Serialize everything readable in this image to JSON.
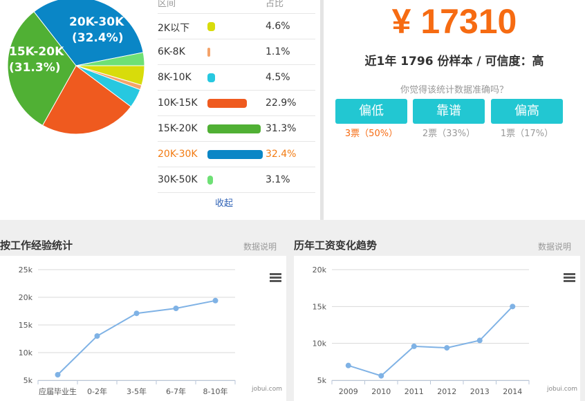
{
  "pie": {
    "labels": [
      {
        "range": "20K-30K",
        "pct": "(32.4%)"
      },
      {
        "range": "15K-20K",
        "pct": "(31.3%)"
      }
    ],
    "slices": [
      {
        "value": 4.6,
        "color": "#d8dc0b"
      },
      {
        "value": 1.1,
        "color": "#f4a36a"
      },
      {
        "value": 4.5,
        "color": "#27c8e0"
      },
      {
        "value": 22.9,
        "color": "#ef5a1f"
      },
      {
        "value": 31.3,
        "color": "#50b034"
      },
      {
        "value": 32.4,
        "color": "#0a86c6"
      },
      {
        "value": 3.1,
        "color": "#6ee075"
      }
    ]
  },
  "table": {
    "col_range": "区间",
    "col_pct": "占比",
    "rows": [
      {
        "range": "2K以下",
        "pct": "4.6%",
        "value": 4.6,
        "color": "#d8dc0b"
      },
      {
        "range": "6K-8K",
        "pct": "1.1%",
        "value": 1.1,
        "color": "#f4a36a"
      },
      {
        "range": "8K-10K",
        "pct": "4.5%",
        "value": 4.5,
        "color": "#27c8e0"
      },
      {
        "range": "10K-15K",
        "pct": "22.9%",
        "value": 22.9,
        "color": "#ef5a1f"
      },
      {
        "range": "15K-20K",
        "pct": "31.3%",
        "value": 31.3,
        "color": "#50b034"
      },
      {
        "range": "20K-30K",
        "pct": "32.4%",
        "value": 32.4,
        "color": "#0a86c6"
      },
      {
        "range": "30K-50K",
        "pct": "3.1%",
        "value": 3.1,
        "color": "#6ee075"
      }
    ],
    "collapse_label": "收起"
  },
  "summary": {
    "salary": "¥ 17310",
    "sample": "近1年 1796 份样本 / 可信度：高",
    "question": "你觉得该统计数据准确吗？",
    "votes": [
      {
        "label": "偏低",
        "count": "3票（50%）",
        "active": true
      },
      {
        "label": "靠谱",
        "count": "2票（33%）",
        "active": false
      },
      {
        "label": "偏高",
        "count": "1票（17%）",
        "active": false
      }
    ]
  },
  "experience": {
    "title": "按工作经验统计",
    "link": "数据说明",
    "credit": "jobui.com"
  },
  "trend": {
    "title": "历年工资变化趋势",
    "link": "数据说明",
    "credit": "jobui.com"
  },
  "chart_data": [
    {
      "type": "line",
      "categories": [
        "应届毕业生",
        "0-2年",
        "3-5年",
        "6-7年",
        "8-10年"
      ],
      "values": [
        6000,
        13000,
        17100,
        18000,
        19400
      ],
      "ylim": [
        5000,
        25000
      ],
      "yticks": [
        "5k",
        "10k",
        "15k",
        "20k",
        "25k"
      ],
      "grid": true,
      "color": "#7fb2e5"
    },
    {
      "type": "line",
      "categories": [
        "2009",
        "2010",
        "2011",
        "2012",
        "2013",
        "2014"
      ],
      "values": [
        7000,
        5600,
        9600,
        9400,
        10400,
        15000
      ],
      "ylim": [
        5000,
        20000
      ],
      "yticks": [
        "5k",
        "10k",
        "15k",
        "20k"
      ],
      "grid": true,
      "color": "#7fb2e5"
    }
  ]
}
